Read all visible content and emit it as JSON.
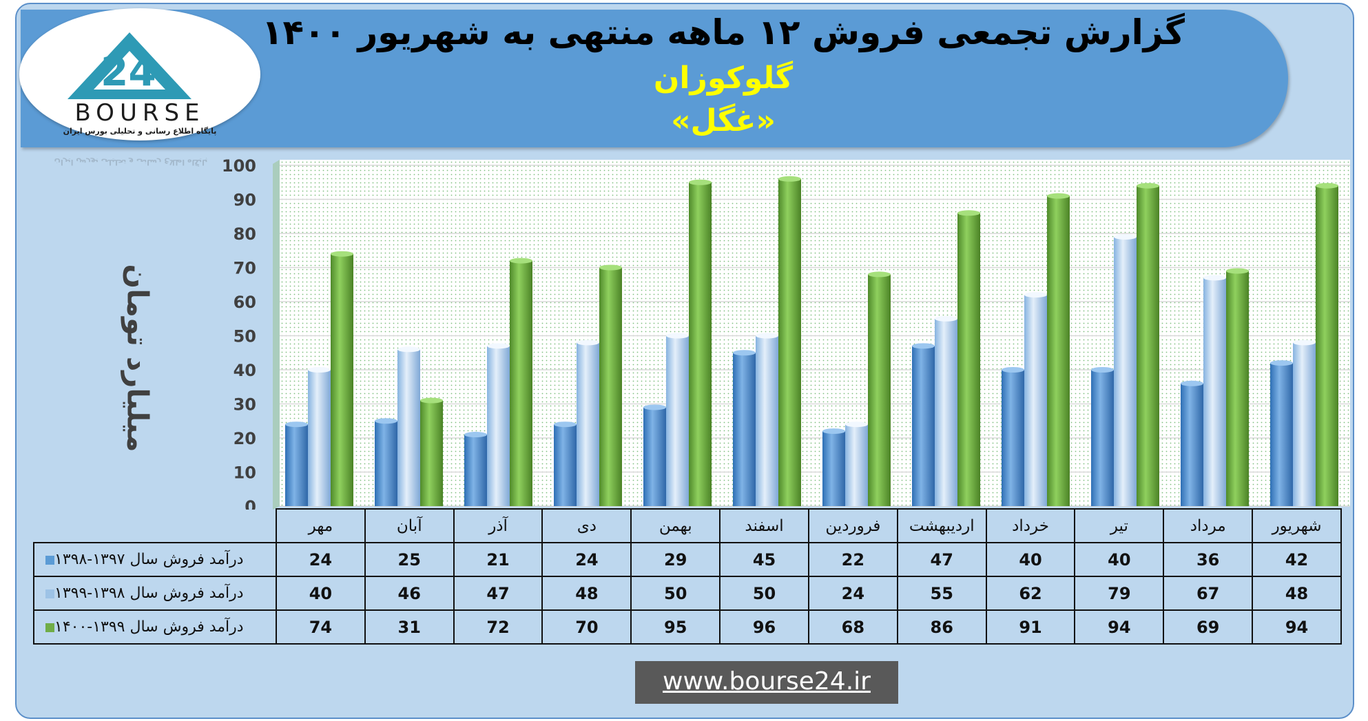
{
  "title": "گزارش تجمعی فروش ۱۲ ماهه منتهی به شهریور ۱۴۰۰",
  "subtitle_company": "گلوکوزان",
  "subtitle_ticker": "«غگل»",
  "logo": {
    "wordmark": "BOURSE",
    "digits": "24",
    "tagline": "پایگاه اطلاع رسانی و تحلیلی بورس ایران"
  },
  "colors": {
    "series1": "#5b9bd5",
    "series2": "#9dc3e6",
    "series3": "#70ad47",
    "banner": "#5b9bd5",
    "background": "#bdd7ee"
  },
  "chart_data": {
    "type": "bar",
    "ylabel": "میلیارد تومان",
    "ylim": [
      0,
      100
    ],
    "yticks": [
      0,
      10,
      20,
      30,
      40,
      50,
      60,
      70,
      80,
      90,
      100
    ],
    "grid": true,
    "legend": "table-left",
    "categories": [
      "مهر",
      "آبان",
      "آذر",
      "دی",
      "بهمن",
      "اسفند",
      "فروردین",
      "اردیبهشت",
      "خرداد",
      "تیر",
      "مرداد",
      "شهریور"
    ],
    "series": [
      {
        "name": "درآمد فروش سال ۱۳۹۷-۱۳۹۸",
        "values": [
          24,
          25,
          21,
          24,
          29,
          45,
          22,
          47,
          40,
          40,
          36,
          42
        ]
      },
      {
        "name": "درآمد فروش سال ۱۳۹۸-۱۳۹۹",
        "values": [
          40,
          46,
          47,
          48,
          50,
          50,
          24,
          55,
          62,
          79,
          67,
          48
        ]
      },
      {
        "name": "درآمد فروش سال ۱۳۹۹-۱۴۰۰",
        "values": [
          74,
          31,
          72,
          70,
          95,
          96,
          68,
          86,
          91,
          94,
          69,
          94
        ]
      }
    ]
  },
  "footer_url": "www.bourse24.ir"
}
